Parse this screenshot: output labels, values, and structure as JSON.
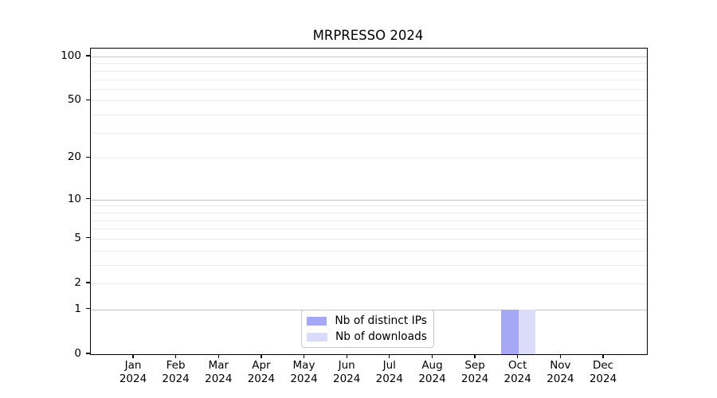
{
  "title": "MRPRESSO 2024",
  "chart_data": {
    "type": "bar",
    "title": "MRPRESSO 2024",
    "categories": [
      "Jan",
      "Feb",
      "Mar",
      "Apr",
      "May",
      "Jun",
      "Jul",
      "Aug",
      "Sep",
      "Oct",
      "Nov",
      "Dec"
    ],
    "year_label": "2024",
    "series": [
      {
        "name": "Nb of distinct IPs",
        "color": "#a5a8f5",
        "values": [
          0,
          0,
          0,
          0,
          0,
          0,
          0,
          0,
          0,
          1,
          0,
          0
        ]
      },
      {
        "name": "Nb of downloads",
        "color": "#dadcf9",
        "values": [
          0,
          0,
          0,
          0,
          0,
          0,
          0,
          0,
          0,
          1,
          0,
          0
        ]
      }
    ],
    "xlabel": "",
    "ylabel": "",
    "y_axis": {
      "scale": "log1p",
      "tick_labels": [
        100,
        50,
        20,
        10,
        5,
        2,
        1,
        0
      ],
      "major_grid_values": [
        1,
        10,
        100
      ],
      "minor_grid_values": [
        2,
        3,
        4,
        5,
        6,
        7,
        8,
        9,
        20,
        30,
        40,
        50,
        60,
        70,
        80,
        90
      ],
      "range": [
        0,
        113
      ]
    },
    "grid": "horizontal",
    "legend_position": "bottom-center",
    "colors": {
      "major_grid": "#c6c6c6",
      "minor_grid": "#ededed",
      "axis": "#000000",
      "background": "#ffffff",
      "legend_border": "#c9c9c9"
    }
  }
}
